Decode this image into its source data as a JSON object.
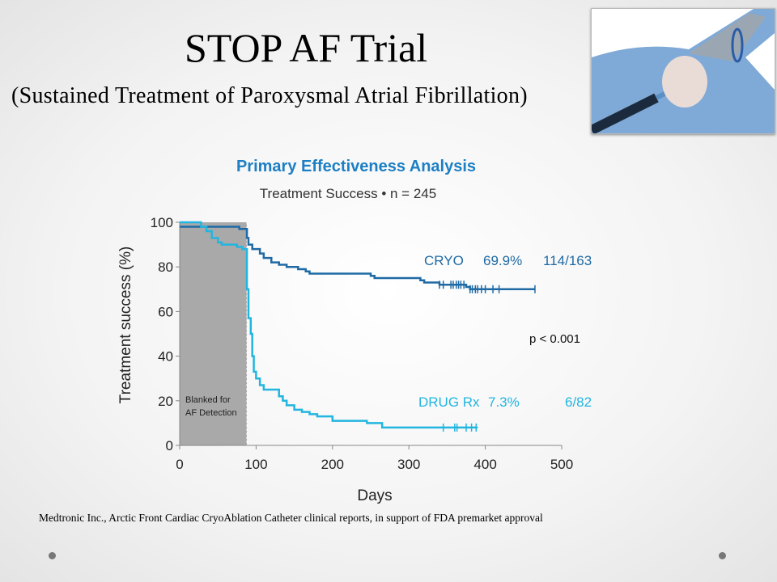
{
  "slide": {
    "title": "STOP AF Trial",
    "subtitle": "(Sustained Treatment of Paroxysmal Atrial Fibrillation)",
    "footer": "Medtronic Inc., Arctic Front Cardiac CryoAblation Catheter clinical reports, in support of FDA premarket approval"
  },
  "chart_data": {
    "type": "line",
    "step": true,
    "title": "Primary Effectiveness Analysis",
    "subtitle": "Treatment Success • n = 245",
    "xlabel": "Days",
    "ylabel": "Treatment success (%)",
    "xlim": [
      0,
      500
    ],
    "ylim": [
      0,
      100
    ],
    "xticks": [
      "0",
      "100",
      "200",
      "300",
      "400",
      "500"
    ],
    "yticks": [
      "0",
      "20",
      "40",
      "60",
      "80",
      "100"
    ],
    "blanked_region": {
      "x": [
        0,
        88
      ],
      "label1": "Blanked for",
      "label2": "AF Detection"
    },
    "p_value": "p < 0.001",
    "series": [
      {
        "name": "CRYO",
        "rate": "69.9%",
        "count": "114/163",
        "color": "#1f6aa5",
        "points": [
          [
            0,
            98
          ],
          [
            78,
            97
          ],
          [
            88,
            93
          ],
          [
            90,
            90
          ],
          [
            95,
            88
          ],
          [
            105,
            86
          ],
          [
            110,
            84
          ],
          [
            120,
            82
          ],
          [
            130,
            81
          ],
          [
            140,
            80
          ],
          [
            155,
            79
          ],
          [
            165,
            78
          ],
          [
            170,
            77
          ],
          [
            250,
            76
          ],
          [
            255,
            75
          ],
          [
            315,
            74
          ],
          [
            320,
            73
          ],
          [
            340,
            72
          ],
          [
            375,
            71
          ],
          [
            380,
            70
          ],
          [
            465,
            70
          ]
        ],
        "censored": [
          340,
          345,
          355,
          358,
          362,
          365,
          368,
          372,
          380,
          383,
          387,
          390,
          395,
          400,
          410,
          418,
          465
        ]
      },
      {
        "name": "DRUG Rx",
        "rate": "7.3%",
        "count": "6/82",
        "color": "#22b5e0",
        "points": [
          [
            0,
            100
          ],
          [
            28,
            98
          ],
          [
            35,
            96
          ],
          [
            42,
            93
          ],
          [
            50,
            91
          ],
          [
            55,
            90
          ],
          [
            75,
            89
          ],
          [
            82,
            88
          ],
          [
            88,
            70
          ],
          [
            90,
            57
          ],
          [
            93,
            50
          ],
          [
            95,
            40
          ],
          [
            97,
            33
          ],
          [
            100,
            30
          ],
          [
            105,
            27
          ],
          [
            110,
            25
          ],
          [
            130,
            22
          ],
          [
            135,
            20
          ],
          [
            140,
            18
          ],
          [
            150,
            16
          ],
          [
            160,
            15
          ],
          [
            170,
            14
          ],
          [
            180,
            13
          ],
          [
            200,
            11
          ],
          [
            245,
            10
          ],
          [
            265,
            8
          ],
          [
            390,
            8
          ]
        ],
        "censored": [
          345,
          360,
          363,
          375,
          382,
          388
        ]
      }
    ]
  }
}
